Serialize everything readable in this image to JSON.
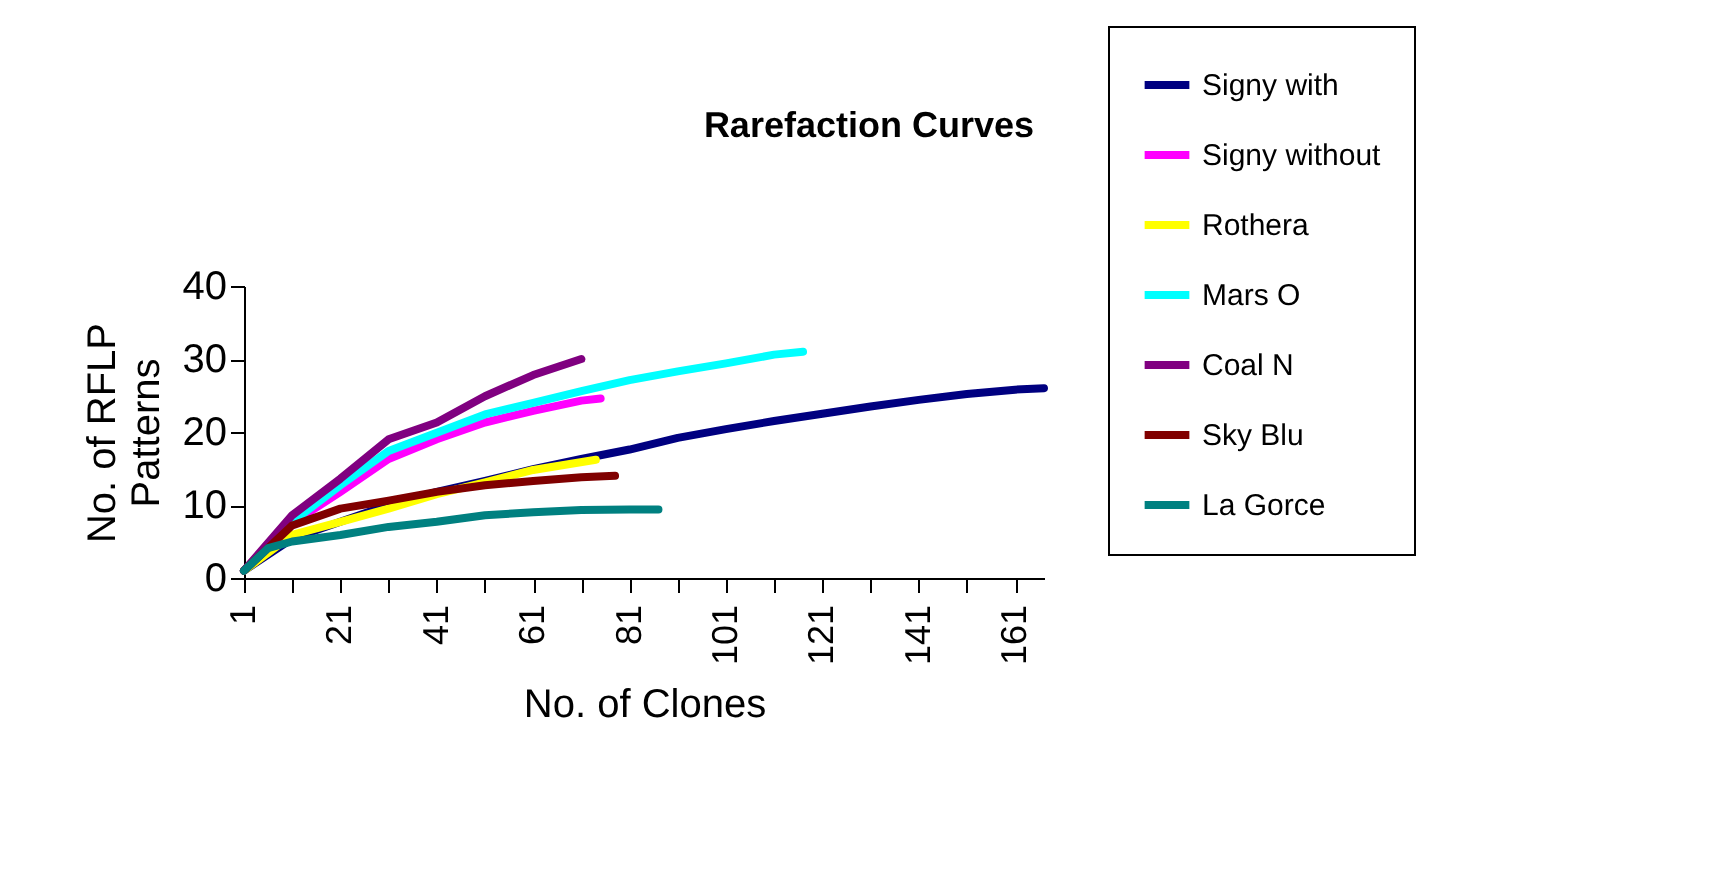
{
  "chart_data": {
    "type": "line",
    "title": "Rarefaction Curves",
    "xlabel": "No. of Clones",
    "ylabel": "No. of RFLP Patterns",
    "xlim": [
      1,
      167
    ],
    "xticks": [
      1,
      {
        "value": 11,
        "label": null
      },
      21,
      {
        "value": 31,
        "label": null
      },
      41,
      {
        "value": 51,
        "label": null
      },
      61,
      {
        "value": 71,
        "label": null
      },
      81,
      {
        "value": 91,
        "label": null
      },
      101,
      {
        "value": 111,
        "label": null
      },
      121,
      {
        "value": 131,
        "label": null
      },
      141,
      {
        "value": 151,
        "label": null
      },
      161
    ],
    "ylim": [
      0,
      40
    ],
    "yticks": [
      0,
      10,
      20,
      30,
      40
    ],
    "grid": false,
    "legend": "right",
    "marker": "none",
    "line_style": "solid",
    "series": [
      {
        "name": "Signy with",
        "color": "#000080",
        "x": [
          1,
          11,
          21,
          31,
          41,
          51,
          61,
          71,
          81,
          91,
          101,
          111,
          121,
          131,
          141,
          151,
          161,
          167
        ],
        "values": [
          1,
          5.4,
          7.7,
          10,
          11.8,
          13.3,
          14.9,
          16.3,
          17.6,
          19.2,
          20.4,
          21.5,
          22.5,
          23.5,
          24.4,
          25.2,
          25.8,
          26
        ]
      },
      {
        "name": "Signy without",
        "color": "#ff00ff",
        "x": [
          1,
          11,
          21,
          31,
          41,
          51,
          61,
          71,
          75
        ],
        "values": [
          1,
          7.5,
          11.8,
          16.3,
          19,
          21.3,
          22.9,
          24.3,
          24.6
        ]
      },
      {
        "name": "Rothera",
        "color": "#ffff00",
        "x": [
          1,
          11,
          21,
          31,
          41,
          51,
          61,
          74
        ],
        "values": [
          1,
          5.9,
          7.7,
          9.5,
          11.5,
          13.1,
          14.8,
          16.2
        ]
      },
      {
        "name": "Mars O",
        "color": "#00ffff",
        "x": [
          1,
          11,
          21,
          31,
          41,
          51,
          61,
          71,
          81,
          91,
          101,
          111,
          117
        ],
        "values": [
          1,
          7.7,
          12.7,
          17.4,
          19.9,
          22.4,
          24,
          25.6,
          27.1,
          28.3,
          29.4,
          30.6,
          31
        ]
      },
      {
        "name": "Coal N",
        "color": "#800080",
        "x": [
          1,
          11,
          21,
          31,
          41,
          51,
          61,
          71
        ],
        "values": [
          1,
          8.6,
          13.6,
          19,
          21.3,
          24.9,
          27.8,
          30
        ]
      },
      {
        "name": "Sky Blu",
        "color": "#800000",
        "x": [
          1,
          11,
          21,
          31,
          41,
          51,
          61,
          71,
          78
        ],
        "values": [
          1,
          7.2,
          9.5,
          10.6,
          11.8,
          12.7,
          13.3,
          13.8,
          14
        ]
      },
      {
        "name": "La Gorce",
        "color": "#008080",
        "x": [
          1,
          6,
          11,
          21,
          31,
          41,
          51,
          61,
          71,
          81,
          87
        ],
        "values": [
          1,
          4.1,
          5,
          5.9,
          7,
          7.7,
          8.6,
          9,
          9.3,
          9.4,
          9.4
        ]
      }
    ]
  }
}
